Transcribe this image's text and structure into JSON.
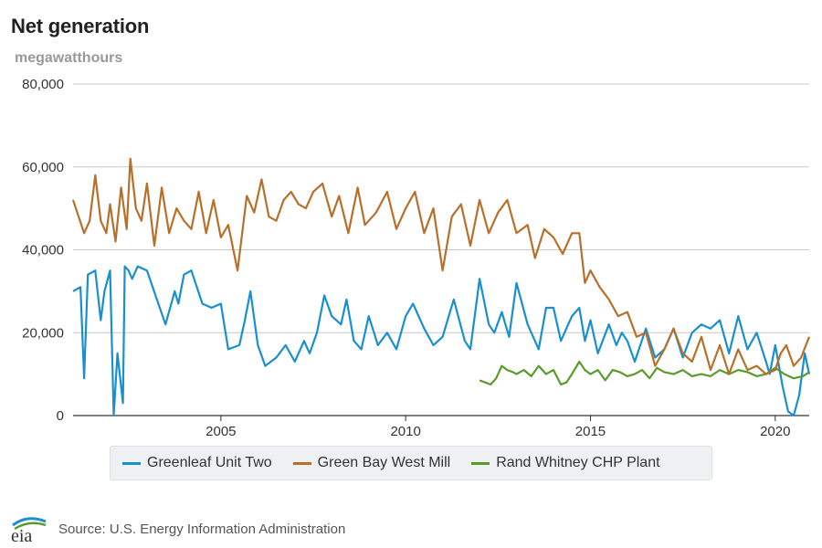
{
  "title": "Net generation",
  "subtitle": "megawatthours",
  "source": "Source: U.S. Energy Information Administration",
  "logo_text": "eia",
  "chart_data": {
    "type": "line",
    "xlim": [
      2001.0,
      2020.92
    ],
    "ylim": [
      0,
      80000
    ],
    "yticks": [
      0,
      20000,
      40000,
      60000,
      80000
    ],
    "ytick_labels": [
      "0",
      "20,000",
      "40,000",
      "60,000",
      "80,000"
    ],
    "xticks": [
      2005,
      2010,
      2015,
      2020
    ],
    "xtick_labels": [
      "2005",
      "2010",
      "2015",
      "2020"
    ],
    "grid": true,
    "legend_position": "bottom",
    "series": [
      {
        "name": "Greenleaf Unit Two",
        "color": "#1a8fd0",
        "x": [
          2001.0,
          2001.2,
          2001.3,
          2001.4,
          2001.6,
          2001.75,
          2001.85,
          2002.0,
          2002.1,
          2002.2,
          2002.35,
          2002.4,
          2002.5,
          2002.6,
          2002.75,
          2003.0,
          2003.5,
          2003.75,
          2003.85,
          2004.0,
          2004.2,
          2004.5,
          2004.75,
          2005.0,
          2005.2,
          2005.5,
          2005.65,
          2005.8,
          2006.0,
          2006.2,
          2006.5,
          2006.75,
          2007.0,
          2007.25,
          2007.4,
          2007.6,
          2007.8,
          2008.0,
          2008.25,
          2008.4,
          2008.6,
          2008.8,
          2009.0,
          2009.25,
          2009.5,
          2009.75,
          2010.0,
          2010.2,
          2010.5,
          2010.75,
          2011.0,
          2011.3,
          2011.6,
          2011.75,
          2012.0,
          2012.25,
          2012.4,
          2012.6,
          2012.8,
          2013.0,
          2013.3,
          2013.6,
          2013.8,
          2014.0,
          2014.2,
          2014.5,
          2014.7,
          2014.85,
          2015.0,
          2015.2,
          2015.5,
          2015.7,
          2015.85,
          2016.0,
          2016.2,
          2016.5,
          2016.75,
          2017.0,
          2017.25,
          2017.5,
          2017.75,
          2018.0,
          2018.25,
          2018.5,
          2018.75,
          2019.0,
          2019.25,
          2019.5,
          2019.75,
          2019.85,
          2020.0,
          2020.2,
          2020.35,
          2020.5,
          2020.65,
          2020.8,
          2020.92
        ],
        "values": [
          30000,
          31000,
          9000,
          34000,
          35000,
          23000,
          30000,
          35000,
          0,
          15000,
          3000,
          36000,
          35000,
          33000,
          36000,
          35000,
          22000,
          30000,
          27000,
          34000,
          35000,
          27000,
          26000,
          27000,
          16000,
          17000,
          23000,
          30000,
          17000,
          12000,
          14000,
          17000,
          13000,
          18000,
          15000,
          20000,
          29000,
          24000,
          22000,
          28000,
          18000,
          16000,
          24000,
          17000,
          20000,
          16000,
          24000,
          27000,
          21000,
          17000,
          19000,
          28000,
          18000,
          16000,
          33000,
          22000,
          20000,
          25000,
          19000,
          32000,
          22000,
          16000,
          26000,
          26000,
          18000,
          24000,
          26000,
          18000,
          23000,
          15000,
          22000,
          17000,
          20000,
          18000,
          13000,
          21000,
          14000,
          16000,
          21000,
          14000,
          20000,
          22000,
          21000,
          23000,
          15000,
          24000,
          16000,
          20000,
          13000,
          10000,
          17000,
          7000,
          1000,
          0,
          5000,
          15000,
          10000
        ]
      },
      {
        "name": "Green Bay West Mill",
        "color": "#b86f2a",
        "x": [
          2001.0,
          2001.15,
          2001.3,
          2001.45,
          2001.6,
          2001.75,
          2001.9,
          2002.0,
          2002.15,
          2002.3,
          2002.45,
          2002.55,
          2002.7,
          2002.85,
          2003.0,
          2003.2,
          2003.4,
          2003.6,
          2003.8,
          2004.0,
          2004.2,
          2004.4,
          2004.6,
          2004.8,
          2005.0,
          2005.2,
          2005.45,
          2005.7,
          2005.9,
          2006.1,
          2006.3,
          2006.5,
          2006.7,
          2006.9,
          2007.1,
          2007.3,
          2007.5,
          2007.75,
          2008.0,
          2008.2,
          2008.45,
          2008.7,
          2008.9,
          2009.2,
          2009.5,
          2009.75,
          2010.0,
          2010.25,
          2010.5,
          2010.75,
          2011.0,
          2011.25,
          2011.5,
          2011.75,
          2012.0,
          2012.25,
          2012.5,
          2012.75,
          2013.0,
          2013.3,
          2013.5,
          2013.75,
          2014.0,
          2014.25,
          2014.5,
          2014.7,
          2014.85,
          2015.0,
          2015.25,
          2015.5,
          2015.75,
          2016.0,
          2016.25,
          2016.5,
          2016.75,
          2017.0,
          2017.25,
          2017.5,
          2017.75,
          2018.0,
          2018.25,
          2018.5,
          2018.75,
          2019.0,
          2019.25,
          2019.5,
          2019.75,
          2020.0,
          2020.15,
          2020.3,
          2020.5,
          2020.7,
          2020.92
        ],
        "values": [
          52000,
          48000,
          44000,
          47000,
          58000,
          47000,
          44000,
          51000,
          42000,
          55000,
          45000,
          62000,
          50000,
          47000,
          56000,
          41000,
          55000,
          44000,
          50000,
          47000,
          45000,
          54000,
          44000,
          52000,
          43000,
          46000,
          35000,
          53000,
          49000,
          57000,
          48000,
          47000,
          52000,
          54000,
          51000,
          50000,
          54000,
          56000,
          48000,
          53000,
          44000,
          55000,
          46000,
          49000,
          54000,
          45000,
          50000,
          54000,
          44000,
          50000,
          35000,
          48000,
          51000,
          41000,
          52000,
          44000,
          49000,
          52000,
          44000,
          46000,
          38000,
          45000,
          43000,
          39000,
          44000,
          44000,
          32000,
          35000,
          31000,
          28000,
          24000,
          25000,
          19000,
          20000,
          12000,
          16000,
          21000,
          15000,
          13000,
          19000,
          11000,
          17000,
          10000,
          16000,
          11000,
          12000,
          10000,
          11000,
          15000,
          17000,
          12000,
          14000,
          19000
        ]
      },
      {
        "name": "Rand Whitney CHP Plant",
        "color": "#5a9a2c",
        "x": [
          2012.0,
          2012.15,
          2012.3,
          2012.45,
          2012.6,
          2012.75,
          2012.9,
          2013.0,
          2013.2,
          2013.4,
          2013.6,
          2013.8,
          2014.0,
          2014.2,
          2014.35,
          2014.5,
          2014.7,
          2014.85,
          2015.0,
          2015.2,
          2015.4,
          2015.6,
          2015.8,
          2016.0,
          2016.2,
          2016.4,
          2016.6,
          2016.8,
          2017.0,
          2017.25,
          2017.5,
          2017.75,
          2018.0,
          2018.25,
          2018.5,
          2018.75,
          2019.0,
          2019.25,
          2019.5,
          2019.75,
          2020.0,
          2020.25,
          2020.5,
          2020.75,
          2020.92
        ],
        "values": [
          8500,
          8000,
          7500,
          9000,
          12000,
          11000,
          10500,
          10000,
          11000,
          9500,
          12000,
          10000,
          11000,
          7500,
          8000,
          10000,
          13000,
          11000,
          10000,
          11000,
          8500,
          11000,
          10500,
          9500,
          10000,
          11000,
          9000,
          11500,
          10500,
          10000,
          11000,
          9500,
          10000,
          9500,
          11000,
          10000,
          11000,
          10500,
          9500,
          10000,
          11500,
          10000,
          9000,
          9500,
          10500
        ]
      }
    ]
  }
}
